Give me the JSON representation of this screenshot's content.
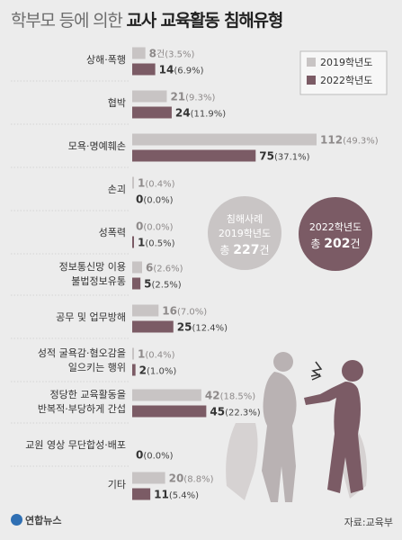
{
  "title": {
    "light": "학부모 등에 의한 ",
    "bold": "교사 교육활동 침해유형"
  },
  "legend": {
    "a": "2019학년도",
    "b": "2022학년도"
  },
  "colors": {
    "y2019": "#c8c4c4",
    "y2022": "#7b5b65",
    "bg": "#ececec"
  },
  "callouts": {
    "left": {
      "line1": "침해사례",
      "line2": "2019학년도",
      "line3_prefix": "총 ",
      "line3_value": "227",
      "line3_suffix": "건"
    },
    "right": {
      "line1": "2022학년도",
      "line2_prefix": "총 ",
      "line2_value": "202",
      "line2_suffix": "건"
    }
  },
  "chart_data": {
    "type": "bar",
    "orientation": "horizontal",
    "title": "학부모 등에 의한 교사 교육활동 침해유형",
    "categories": [
      [
        "상해·폭행"
      ],
      [
        "협박"
      ],
      [
        "모욕·명예훼손"
      ],
      [
        "손괴"
      ],
      [
        "성폭력"
      ],
      [
        "정보통신망 이용",
        "불법정보유통"
      ],
      [
        "공무 및 업무방해"
      ],
      [
        "성적 굴욕감·혐오감을",
        "일으키는 행위"
      ],
      [
        "정당한 교육활동을",
        "반복적·부당하게 간섭"
      ],
      [
        "교원 영상 무단합성·배포"
      ],
      [
        "기타"
      ]
    ],
    "series": [
      {
        "name": "2019학년도",
        "values": [
          8,
          21,
          112,
          1,
          0,
          6,
          16,
          1,
          42,
          null,
          20
        ],
        "pct": [
          "3.5%",
          "9.3%",
          "49.3%",
          "0.4%",
          "0.0%",
          "2.6%",
          "7.0%",
          "0.4%",
          "18.5%",
          null,
          "8.8%"
        ]
      },
      {
        "name": "2022학년도",
        "values": [
          14,
          24,
          75,
          0,
          1,
          5,
          25,
          2,
          45,
          0,
          11
        ],
        "pct": [
          "6.9%",
          "11.9%",
          "37.1%",
          "0.0%",
          "0.5%",
          "2.5%",
          "12.4%",
          "1.0%",
          "22.3%",
          "0.0%",
          "5.4%"
        ]
      }
    ],
    "unit": "건"
  },
  "source": "자료:교육부",
  "logo": "연합뉴스"
}
